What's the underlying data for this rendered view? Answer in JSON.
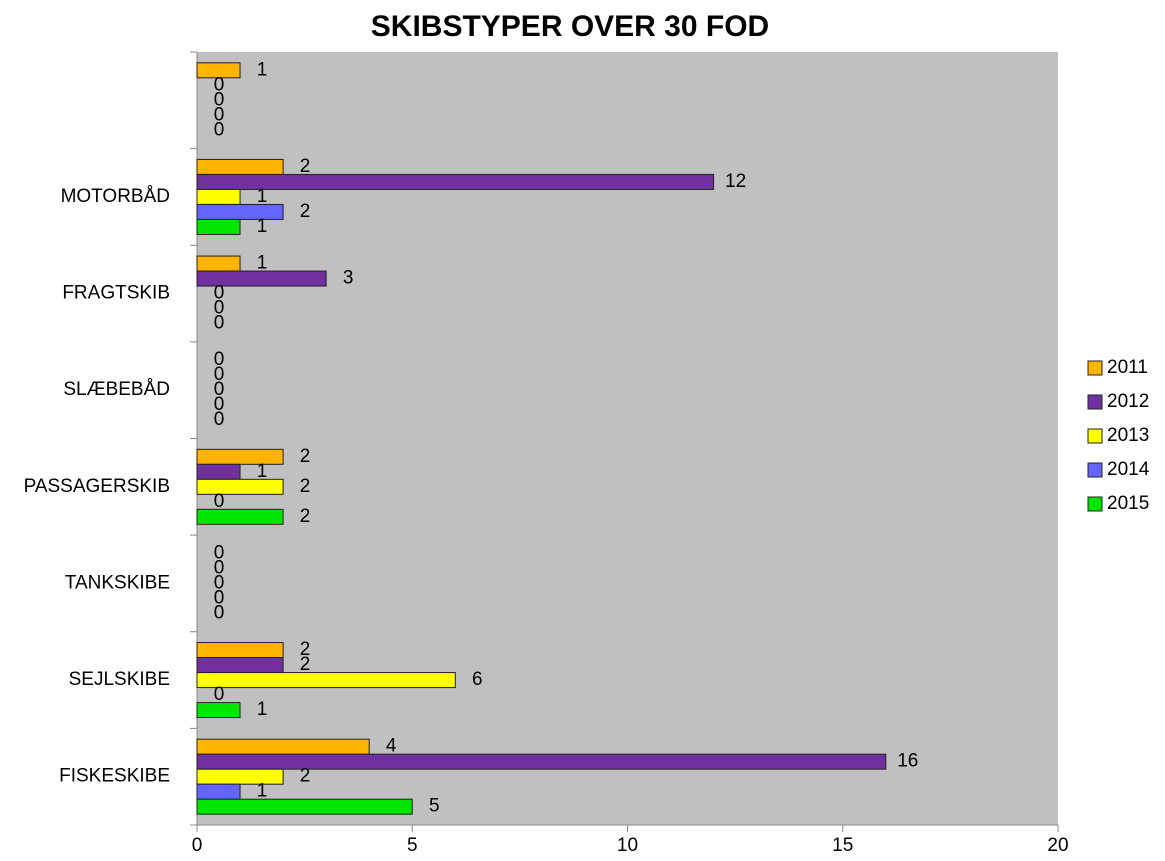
{
  "chart_data": {
    "type": "bar",
    "orientation": "horizontal",
    "title": "SKIBSTYPER OVER 30 FOD",
    "categories": [
      "FISKESKIBE",
      "SEJLSKIBE",
      "TANKSKIBE",
      "PASSAGERSKIB",
      "SLÆBEBÅD",
      "FRAGTSKIB",
      "MOTORBÅD",
      null
    ],
    "series": [
      {
        "name": "2011",
        "color": "#FFB400",
        "values": [
          4,
          2,
          0,
          2,
          0,
          1,
          2,
          1
        ]
      },
      {
        "name": "2012",
        "color": "#7030A0",
        "values": [
          16,
          2,
          0,
          1,
          0,
          3,
          12,
          0
        ]
      },
      {
        "name": "2013",
        "color": "#FFFF00",
        "values": [
          2,
          6,
          0,
          2,
          0,
          0,
          1,
          0
        ]
      },
      {
        "name": "2014",
        "color": "#6464FF",
        "values": [
          1,
          0,
          0,
          0,
          0,
          0,
          2,
          0
        ]
      },
      {
        "name": "2015",
        "color": "#00E600",
        "values": [
          5,
          1,
          0,
          2,
          0,
          0,
          1,
          0
        ]
      }
    ],
    "xlim": [
      0,
      20
    ],
    "xticks": [
      0,
      5,
      10,
      15,
      20
    ],
    "legend": "right",
    "plot_background": "#C0C0C0"
  }
}
